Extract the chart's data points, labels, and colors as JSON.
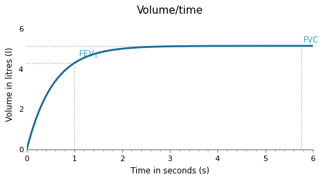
{
  "title": "Volume/time",
  "xlabel": "Time in seconds (s)",
  "ylabel": "Volume in litres (l)",
  "xlim": [
    0,
    6
  ],
  "ylim": [
    0,
    6.5
  ],
  "xticks": [
    0,
    1,
    2,
    3,
    4,
    5,
    6
  ],
  "yticks": [
    0,
    2,
    4,
    6
  ],
  "fev1_time": 1.0,
  "fev1_vol": 4.3,
  "fvc_time": 5.75,
  "fvc_vol": 5.15,
  "curve_color": "#1a6e96",
  "annotation_color": "#29a8c8",
  "dotted_color": "#aaaaaa",
  "bg_color": "#ffffff",
  "curve_linewidth": 2.0,
  "title_fontsize": 11,
  "label_fontsize": 8.5,
  "tick_fontsize": 8,
  "annotation_fontsize": 8.5,
  "k_multiplier": 3.2
}
